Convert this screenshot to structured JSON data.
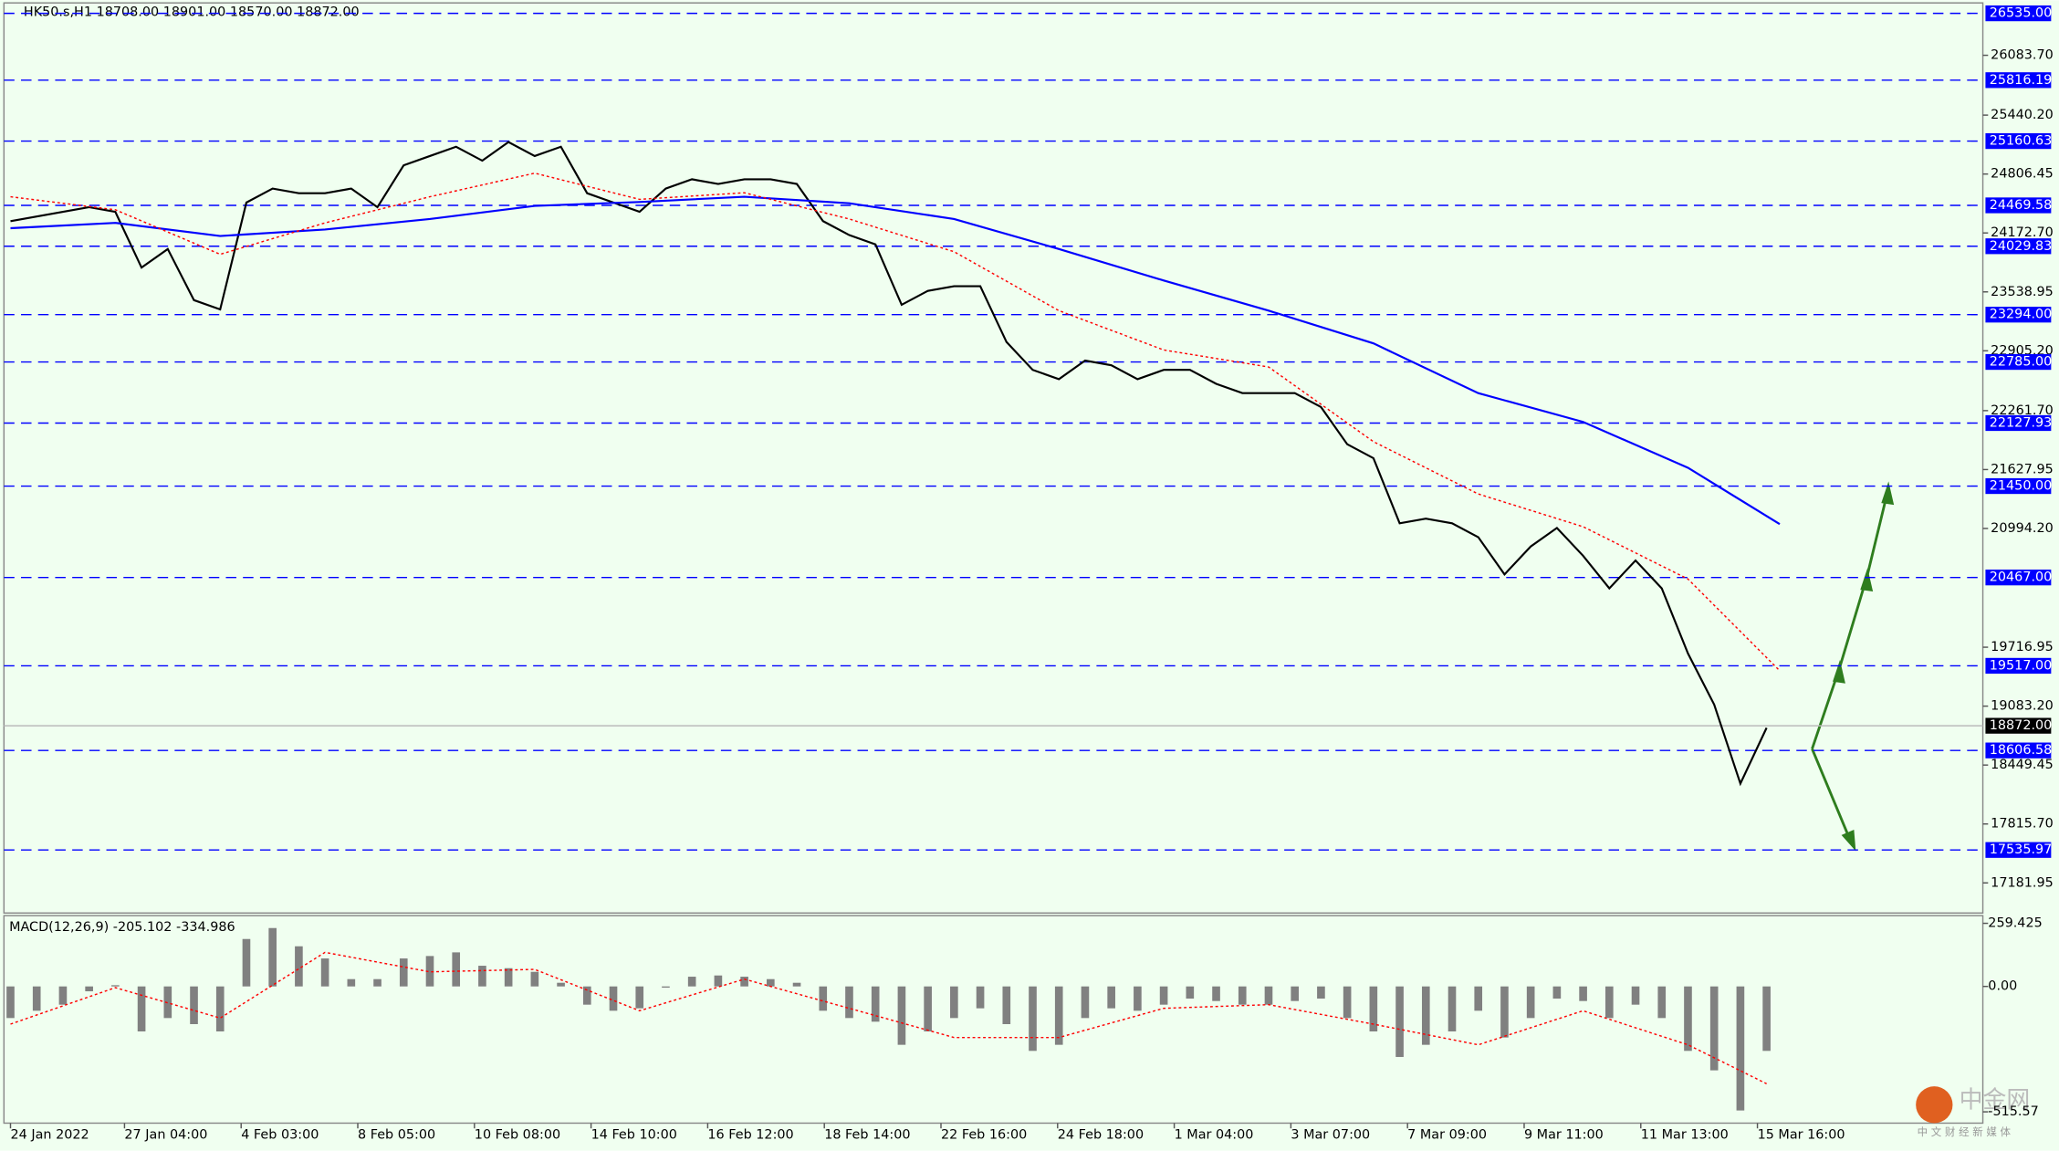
{
  "chart_data": [
    {
      "type": "line",
      "title": "HK50.s,H1  18708.00 18901.00 18570.00 18872.00",
      "xlim": [
        -0.25,
        75.25
      ],
      "xticks": [
        {
          "value": 0,
          "label": "24 Jan 2022"
        },
        {
          "value": 4.35,
          "label": "27 Jan 04:00"
        },
        {
          "value": 8.8,
          "label": "4 Feb 03:00"
        },
        {
          "value": 13.25,
          "label": "8 Feb 05:00"
        },
        {
          "value": 17.7,
          "label": "10 Feb 08:00"
        },
        {
          "value": 22.15,
          "label": "14 Feb 10:00"
        },
        {
          "value": 26.6,
          "label": "16 Feb 12:00"
        },
        {
          "value": 31.05,
          "label": "18 Feb 14:00"
        },
        {
          "value": 35.5,
          "label": "22 Feb 16:00"
        },
        {
          "value": 39.95,
          "label": "24 Feb 18:00"
        },
        {
          "value": 44.4,
          "label": "1 Mar 04:00"
        },
        {
          "value": 48.85,
          "label": "3 Mar 07:00"
        },
        {
          "value": 53.3,
          "label": "7 Mar 09:00"
        },
        {
          "value": 57.75,
          "label": "9 Mar 11:00"
        },
        {
          "value": 62.2,
          "label": "11 Mar 13:00"
        },
        {
          "value": 66.65,
          "label": "15 Mar 16:00"
        }
      ],
      "ylim": [
        16858,
        26647
      ],
      "yticks": [
        {
          "value": 26083.7,
          "label": "26083.70"
        },
        {
          "value": 25440.2,
          "label": "25440.20"
        },
        {
          "value": 24806.45,
          "label": "24806.45"
        },
        {
          "value": 24172.7,
          "label": "24172.70"
        },
        {
          "value": 23538.95,
          "label": "23538.95"
        },
        {
          "value": 22905.2,
          "label": "22905.20"
        },
        {
          "value": 22261.7,
          "label": "22261.70"
        },
        {
          "value": 21627.95,
          "label": "21627.95"
        },
        {
          "value": 20994.2,
          "label": "20994.20"
        },
        {
          "value": 19716.95,
          "label": "19716.95"
        },
        {
          "value": 19083.2,
          "label": "19083.20"
        },
        {
          "value": 18449.45,
          "label": "18449.45"
        },
        {
          "value": 17815.7,
          "label": "17815.70"
        },
        {
          "value": 17181.95,
          "label": "17181.95"
        }
      ],
      "levels": [
        {
          "value": 26535,
          "label": "26535.00"
        },
        {
          "value": 25816.19,
          "label": "25816.19"
        },
        {
          "value": 25160.63,
          "label": "25160.63"
        },
        {
          "value": 24469.58,
          "label": "24469.58"
        },
        {
          "value": 24029.83,
          "label": "24029.83"
        },
        {
          "value": 23294,
          "label": "23294.00"
        },
        {
          "value": 22785,
          "label": "22785.00"
        },
        {
          "value": 22127.93,
          "label": "22127.93"
        },
        {
          "value": 21450,
          "label": "21450.00"
        },
        {
          "value": 20467,
          "label": "20467.00"
        },
        {
          "value": 19517,
          "label": "19517.00"
        },
        {
          "value": 18606.58,
          "label": "18606.58"
        },
        {
          "value": 17535.97,
          "label": "17535.97"
        }
      ],
      "level_color": "#0000ff",
      "current_price": {
        "value": 18872,
        "label": "18872.00"
      },
      "series": [
        {
          "color": "#000000",
          "values": [
            24300,
            24350,
            24400,
            24450,
            24400,
            23800,
            24000,
            23450,
            23350,
            24500,
            24650,
            24600,
            24600,
            24650,
            24450,
            24900,
            25000,
            25100,
            24950,
            25150,
            25000,
            25100,
            24600,
            24500,
            24400,
            24650,
            24750,
            24700,
            24750,
            24750,
            24700,
            24300,
            24150,
            24050,
            23400,
            23550,
            23600,
            23600,
            23000,
            22700,
            22600,
            22800,
            22750,
            22600,
            22700,
            22700,
            22550,
            22450,
            22450,
            22450,
            22300,
            21900,
            21750,
            21050,
            21100,
            21050,
            20900,
            20500,
            20800,
            21000,
            20700,
            20350,
            20650,
            20350,
            19650,
            19100,
            18250,
            18850
          ]
        },
        {
          "color": "#0000ff",
          "x": [
            0,
            4,
            8,
            12,
            16,
            20,
            24,
            28,
            32,
            36,
            40,
            44,
            48,
            52,
            56,
            60,
            64,
            67.5
          ],
          "values": [
            24224,
            24281,
            24140,
            24210,
            24323,
            24464,
            24506,
            24562,
            24492,
            24323,
            24000,
            23661,
            23337,
            22985,
            22450,
            22140,
            21647,
            21041
          ]
        },
        {
          "color": "#ff0000",
          "dashed": true,
          "x": [
            0,
            4,
            8,
            12,
            16,
            20,
            24,
            28,
            32,
            36,
            40,
            44,
            48,
            52,
            56,
            60,
            64,
            67.5
          ],
          "values": [
            24562,
            24422,
            23943,
            24281,
            24562,
            24816,
            24534,
            24605,
            24323,
            23971,
            23337,
            22914,
            22731,
            21928,
            21365,
            21013,
            20450,
            19464
          ]
        }
      ]
    },
    {
      "type": "bar",
      "title": "MACD(12,26,9) -205.102 -334.986",
      "ylim": [
        -562,
        291
      ],
      "yticks": [
        259.425,
        {
          "value": 0,
          "label": "0.00"
        },
        -515.57
      ],
      "color": "#808080",
      "values": [
        -130,
        -100,
        -75,
        -20,
        5,
        -185,
        -130,
        -155,
        -185,
        195,
        240,
        165,
        115,
        30,
        30,
        115,
        125,
        140,
        85,
        75,
        60,
        15,
        -75,
        -100,
        -90,
        -5,
        40,
        45,
        40,
        30,
        15,
        -100,
        -130,
        -145,
        -240,
        -185,
        -130,
        -90,
        -155,
        -265,
        -240,
        -130,
        -90,
        -100,
        -75,
        -50,
        -60,
        -75,
        -75,
        -60,
        -50,
        -130,
        -185,
        -290,
        -240,
        -185,
        -100,
        -210,
        -130,
        -50,
        -60,
        -130,
        -75,
        -130,
        -265,
        -345,
        -510,
        -265
      ],
      "series": [
        {
          "color": "#ff0000",
          "dashed": true,
          "x": [
            0,
            4,
            8,
            12,
            16,
            20,
            24,
            28,
            32,
            36,
            40,
            44,
            48,
            52,
            56,
            60,
            64,
            67
          ],
          "values": [
            -155,
            -5,
            -130,
            140,
            60,
            70,
            -100,
            30,
            -90,
            -210,
            -210,
            -90,
            -75,
            -155,
            -240,
            -100,
            -240,
            -400
          ]
        }
      ]
    }
  ],
  "watermark": {
    "title": "中金网",
    "subtitle": "中 文 财 经 新 媒 体"
  }
}
